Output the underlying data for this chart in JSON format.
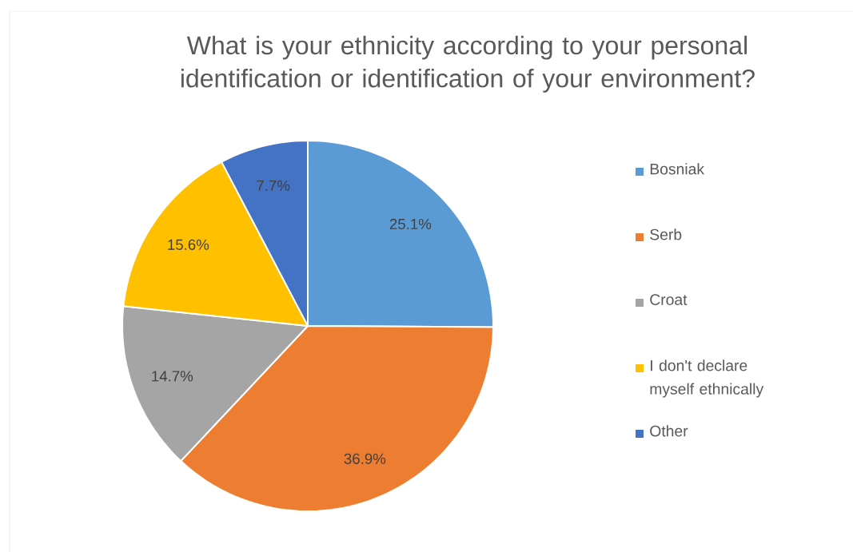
{
  "chart_data": {
    "type": "pie",
    "title": "What is your ethnicity according to your personal identification or identification of your environment?",
    "categories": [
      "Bosniak",
      "Serb",
      "Croat",
      "I don't declare myself ethnically",
      "Other"
    ],
    "values": [
      25.1,
      36.9,
      14.7,
      15.6,
      7.7
    ],
    "colors": [
      "#5b9bd5",
      "#ed7d31",
      "#a5a5a5",
      "#ffc000",
      "#4472c4"
    ],
    "value_labels": [
      "25.1%",
      "36.9%",
      "14.7%",
      "15.6%",
      "7.7%"
    ],
    "legend": "right"
  }
}
